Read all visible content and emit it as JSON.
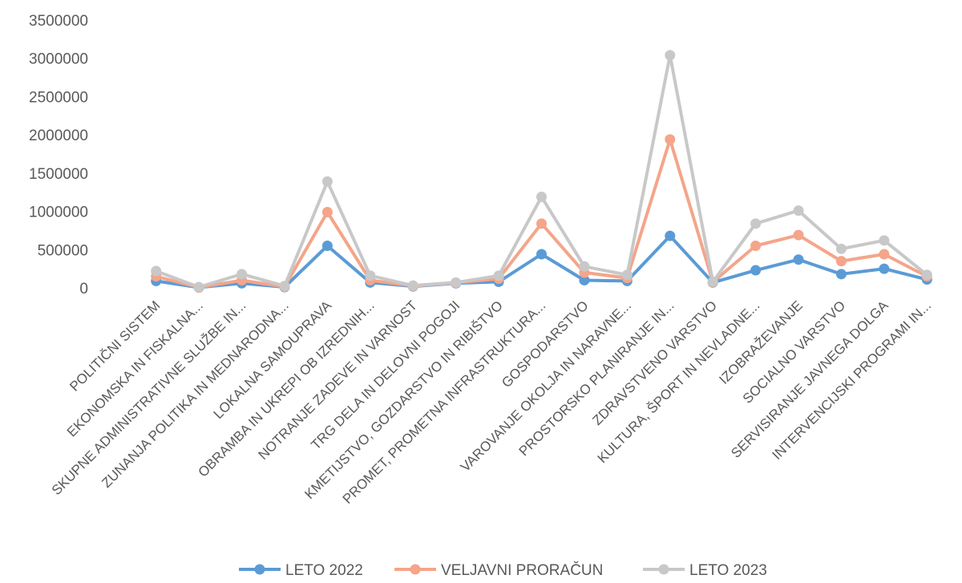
{
  "chart_data": {
    "type": "line",
    "title": "",
    "xlabel": "",
    "ylabel": "",
    "ylim": [
      0,
      3500000
    ],
    "yticks": [
      0,
      500000,
      1000000,
      1500000,
      2000000,
      2500000,
      3000000,
      3500000
    ],
    "ytick_labels": [
      "0",
      "500000",
      "1000000",
      "1500000",
      "2000000",
      "2500000",
      "3000000",
      "3500000"
    ],
    "grid": false,
    "legend_position": "bottom",
    "categories": [
      "POLITIČNI SISTEM",
      "EKONOMSKA IN FISKALNA...",
      "SKUPNE ADMINISTRATIVNE SLUŽBE IN...",
      "ZUNANJA POLITIKA IN MEDNARODNA...",
      "LOKALNA SAMOUPRAVA",
      "OBRAMBA IN UKREPI OB IZREDNIH...",
      "NOTRANJE ZADEVE IN VARNOST",
      "TRG DELA IN DELOVNI POGOJI",
      "KMETIJSTVO, GOZDARSTVO IN RIBIŠTVO",
      "PROMET, PROMETNA INFRASTRUKTURA...",
      "GOSPODARSTVO",
      "VAROVANJE OKOLJA IN NARAVNE...",
      "PROSTORSKO PLANIRANJE IN...",
      "ZDRAVSTVENO VARSTVO",
      "KULTURA, ŠPORT IN NEVLADNE...",
      "IZOBRAŽEVANJE",
      "SOCIALNO VARSTVO",
      "SERVISIRANJE JAVNEGA DOLGA",
      "INTERVENCIJSKI PROGRAMI IN..."
    ],
    "series": [
      {
        "name": "LETO 2022",
        "color": "#5B9BD5",
        "values": [
          90000,
          5000,
          60000,
          10000,
          550000,
          70000,
          20000,
          60000,
          80000,
          440000,
          100000,
          90000,
          680000,
          70000,
          230000,
          370000,
          180000,
          250000,
          110000
        ]
      },
      {
        "name": "VELJAVNI PRORAČUN",
        "color": "#F4A58A",
        "values": [
          150000,
          5000,
          100000,
          15000,
          990000,
          100000,
          25000,
          65000,
          120000,
          840000,
          200000,
          130000,
          1940000,
          75000,
          550000,
          690000,
          350000,
          440000,
          150000
        ]
      },
      {
        "name": "LETO 2023",
        "color": "#C8C8C8",
        "values": [
          220000,
          10000,
          180000,
          25000,
          1390000,
          160000,
          30000,
          70000,
          160000,
          1190000,
          280000,
          170000,
          3040000,
          80000,
          840000,
          1010000,
          510000,
          620000,
          170000
        ]
      }
    ]
  }
}
